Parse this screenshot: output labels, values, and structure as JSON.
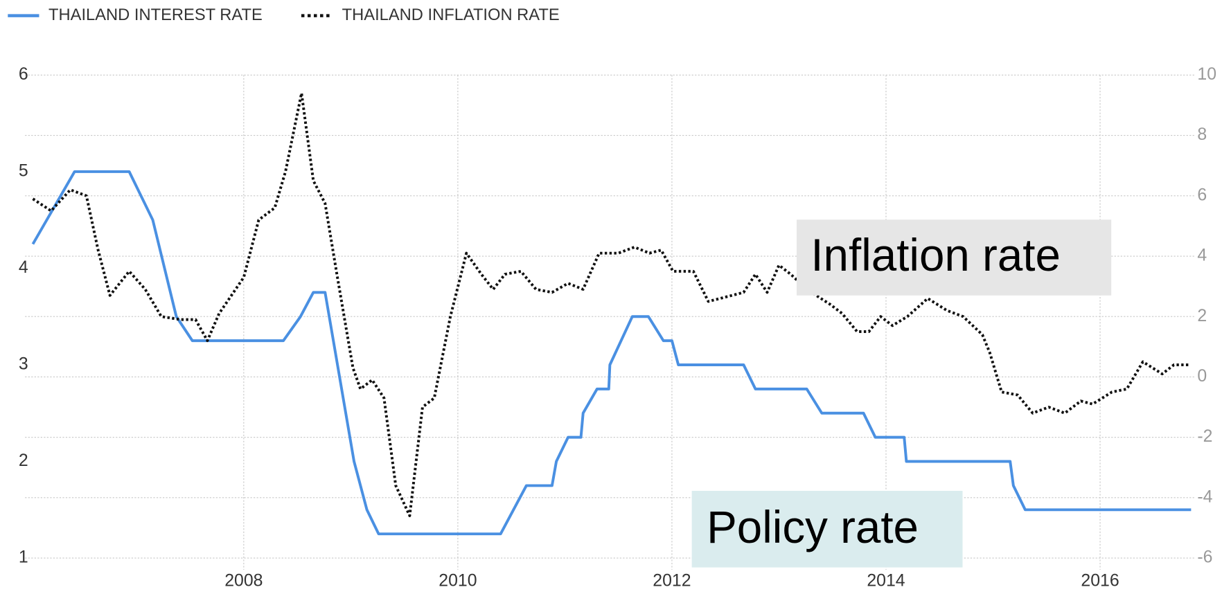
{
  "chart_data": {
    "type": "line",
    "xlim": [
      2006.03,
      2016.85
    ],
    "xticks": [
      2008,
      2010,
      2012,
      2014,
      2016
    ],
    "ylim": [
      1,
      6
    ],
    "yticks": [
      1,
      2,
      3,
      4,
      5,
      6
    ],
    "y2lim": [
      -6,
      10
    ],
    "y2ticks": [
      -6,
      -4,
      -2,
      0,
      2,
      4,
      6,
      8,
      10
    ],
    "grid": true,
    "legend": "top-left",
    "annotations": [
      "Inflation rate",
      "Policy rate"
    ],
    "series": [
      {
        "name": "THAILAND INTEREST RATE",
        "color": "#4a90e2",
        "style": "solid",
        "axis": "y",
        "x": [
          2006.03,
          2006.42,
          2006.93,
          2007.15,
          2007.37,
          2007.52,
          2008.37,
          2008.53,
          2008.65,
          2008.76,
          2009.03,
          2009.15,
          2009.26,
          2010.4,
          2010.64,
          2010.88,
          2010.92,
          2011.03,
          2011.15,
          2011.17,
          2011.3,
          2011.41,
          2011.42,
          2011.63,
          2011.78,
          2011.92,
          2012.0,
          2012.06,
          2012.67,
          2012.78,
          2013.26,
          2013.4,
          2013.79,
          2013.9,
          2014.17,
          2014.19,
          2015.16,
          2015.19,
          2015.3,
          2016.85
        ],
        "values": [
          4.25,
          5.0,
          5.0,
          4.5,
          3.5,
          3.25,
          3.25,
          3.5,
          3.75,
          3.75,
          2.0,
          1.5,
          1.25,
          1.25,
          1.75,
          1.75,
          2.0,
          2.25,
          2.25,
          2.5,
          2.75,
          2.75,
          3.0,
          3.5,
          3.5,
          3.25,
          3.25,
          3.0,
          3.0,
          2.75,
          2.75,
          2.5,
          2.5,
          2.25,
          2.25,
          2.0,
          2.0,
          1.75,
          1.5,
          1.5
        ]
      },
      {
        "name": "THAILAND INFLATION RATE",
        "color": "#111111",
        "style": "dotted",
        "axis": "y2",
        "x": [
          2006.03,
          2006.2,
          2006.38,
          2006.53,
          2006.64,
          2006.75,
          2006.93,
          2007.08,
          2007.23,
          2007.41,
          2007.55,
          2007.66,
          2007.77,
          2008.0,
          2008.14,
          2008.29,
          2008.39,
          2008.54,
          2008.65,
          2008.76,
          2008.87,
          2009.02,
          2009.09,
          2009.2,
          2009.31,
          2009.42,
          2009.55,
          2009.67,
          2009.78,
          2009.93,
          2010.08,
          2010.22,
          2010.33,
          2010.44,
          2010.59,
          2010.73,
          2010.88,
          2011.03,
          2011.17,
          2011.32,
          2011.5,
          2011.65,
          2011.79,
          2011.9,
          2012.01,
          2012.2,
          2012.34,
          2012.56,
          2012.67,
          2012.78,
          2012.89,
          2013.0,
          2013.11,
          2013.26,
          2013.48,
          2013.59,
          2013.73,
          2013.84,
          2013.95,
          2014.06,
          2014.2,
          2014.39,
          2014.57,
          2014.72,
          2014.9,
          2014.97,
          2015.08,
          2015.23,
          2015.37,
          2015.52,
          2015.67,
          2015.82,
          2015.93,
          2016.11,
          2016.25,
          2016.4,
          2016.58,
          2016.69,
          2016.84
        ],
        "values": [
          5.9,
          5.5,
          6.2,
          6.0,
          4.2,
          2.7,
          3.5,
          2.9,
          2.0,
          1.9,
          1.9,
          1.2,
          2.1,
          3.3,
          5.2,
          5.6,
          6.8,
          9.4,
          6.5,
          5.75,
          3.4,
          0.3,
          -0.4,
          -0.1,
          -0.7,
          -3.6,
          -4.6,
          -1.0,
          -0.7,
          2.0,
          4.1,
          3.4,
          2.9,
          3.4,
          3.5,
          2.9,
          2.8,
          3.1,
          2.9,
          4.1,
          4.1,
          4.3,
          4.1,
          4.2,
          3.5,
          3.5,
          2.5,
          2.7,
          2.8,
          3.4,
          2.8,
          3.7,
          3.4,
          2.9,
          2.4,
          2.1,
          1.5,
          1.5,
          2.0,
          1.7,
          2.0,
          2.6,
          2.2,
          2.0,
          1.4,
          0.8,
          -0.5,
          -0.6,
          -1.2,
          -1.0,
          -1.2,
          -0.8,
          -0.9,
          -0.5,
          -0.4,
          0.5,
          0.1,
          0.4,
          0.4
        ]
      }
    ]
  }
}
